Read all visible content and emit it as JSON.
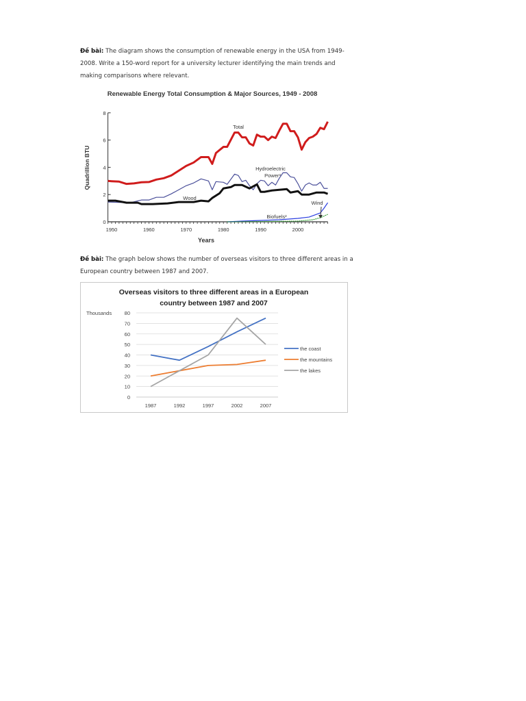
{
  "prompt1": {
    "label": "Đề bài:",
    "text": " The diagram shows the consumption of renewable energy in the USA from 1949-2008. Write a 150-word report for a university lecturer identifying the main trends and making comparisons where relevant."
  },
  "prompt2": {
    "label": "Đề bài:",
    "text": " The graph below shows the number of overseas visitors to three different areas in a European country between 1987 and 2007."
  },
  "chart_data": [
    {
      "type": "line",
      "title": "Renewable Energy Total Consumption & Major Sources, 1949 - 2008",
      "xlabel": "Years",
      "ylabel": "Quadrillion BTU",
      "xlim": [
        1949,
        2008
      ],
      "ylim": [
        0,
        8
      ],
      "xticks": [
        "1950",
        "1960",
        "1970",
        "1980",
        "1990",
        "2000"
      ],
      "yticks": [
        "0",
        "2",
        "4",
        "6",
        "8"
      ],
      "grid": false,
      "legend": "inline labels",
      "series": [
        {
          "name": "Total",
          "label": "Total",
          "color": "#d01c1c",
          "x": [
            1949,
            1950,
            1952,
            1954,
            1956,
            1958,
            1960,
            1962,
            1964,
            1966,
            1968,
            1970,
            1972,
            1974,
            1976,
            1977,
            1978,
            1980,
            1981,
            1983,
            1984,
            1985,
            1986,
            1987,
            1988,
            1989,
            1990,
            1991,
            1992,
            1993,
            1994,
            1995,
            1996,
            1997,
            1998,
            1999,
            2000,
            2001,
            2002,
            2003,
            2004,
            2005,
            2006,
            2007,
            2008
          ],
          "y": [
            3.0,
            2.98,
            2.95,
            2.78,
            2.82,
            2.9,
            2.92,
            3.1,
            3.2,
            3.4,
            3.75,
            4.1,
            4.35,
            4.75,
            4.75,
            4.25,
            5.05,
            5.5,
            5.5,
            6.55,
            6.55,
            6.2,
            6.2,
            5.75,
            5.6,
            6.4,
            6.25,
            6.25,
            6.0,
            6.25,
            6.15,
            6.7,
            7.2,
            7.2,
            6.65,
            6.65,
            6.2,
            5.3,
            5.85,
            6.15,
            6.25,
            6.45,
            6.9,
            6.8,
            7.35
          ]
        },
        {
          "name": "Hydroelectric Power",
          "label": "Hydroelectric",
          "label2": "Power³",
          "color": "#4a4f9a",
          "x": [
            1949,
            1955,
            1958,
            1960,
            1962,
            1964,
            1966,
            1968,
            1970,
            1972,
            1974,
            1976,
            1977,
            1978,
            1980,
            1981,
            1983,
            1984,
            1985,
            1986,
            1987,
            1988,
            1989,
            1990,
            1991,
            1992,
            1993,
            1994,
            1995,
            1996,
            1997,
            1998,
            1999,
            2000,
            2001,
            2002,
            2003,
            2004,
            2005,
            2006,
            2007,
            2008
          ],
          "y": [
            1.45,
            1.4,
            1.6,
            1.6,
            1.8,
            1.8,
            2.05,
            2.35,
            2.65,
            2.85,
            3.15,
            3.0,
            2.35,
            2.95,
            2.9,
            2.75,
            3.5,
            3.4,
            2.95,
            3.05,
            2.65,
            2.35,
            2.8,
            3.05,
            3.0,
            2.65,
            2.9,
            2.7,
            3.2,
            3.6,
            3.6,
            3.3,
            3.25,
            2.8,
            2.25,
            2.7,
            2.85,
            2.7,
            2.7,
            2.9,
            2.45,
            2.45
          ]
        },
        {
          "name": "Wood",
          "label": "Wood",
          "color": "#111111",
          "x": [
            1949,
            1951,
            1954,
            1957,
            1958,
            1961,
            1965,
            1968,
            1972,
            1974,
            1976,
            1977,
            1979,
            1980,
            1982,
            1983,
            1985,
            1987,
            1989,
            1990,
            1991,
            1993,
            1995,
            1997,
            1998,
            2000,
            2001,
            2003,
            2005,
            2007,
            2008
          ],
          "y": [
            1.55,
            1.55,
            1.4,
            1.4,
            1.3,
            1.3,
            1.35,
            1.45,
            1.45,
            1.55,
            1.5,
            1.75,
            2.1,
            2.45,
            2.55,
            2.7,
            2.7,
            2.45,
            2.75,
            2.2,
            2.2,
            2.3,
            2.35,
            2.4,
            2.15,
            2.25,
            2.0,
            2.0,
            2.15,
            2.15,
            2.05
          ]
        },
        {
          "name": "Wind",
          "label": "Wind",
          "color": "#2a3ee0",
          "x": [
            1981,
            1985,
            1990,
            1995,
            2000,
            2003,
            2005,
            2006,
            2007,
            2008
          ],
          "y": [
            0.0,
            0.05,
            0.1,
            0.15,
            0.25,
            0.35,
            0.55,
            0.65,
            1.0,
            1.4
          ]
        },
        {
          "name": "Biofuels",
          "label": "Biofuels²",
          "color": "#2e9a2e",
          "x": [
            1981,
            1990,
            2000,
            2002,
            2004,
            2006,
            2007,
            2008
          ],
          "y": [
            0.0,
            0.02,
            0.05,
            0.1,
            0.15,
            0.3,
            0.42,
            0.55
          ]
        }
      ]
    },
    {
      "type": "line",
      "title_line1": "Overseas visitors to three different areas in a European",
      "title_line2": "country between 1987 and 2007",
      "ylabel": "Thousands",
      "categories": [
        "1987",
        "1992",
        "1997",
        "2002",
        "2007"
      ],
      "yticks": [
        "0",
        "10",
        "20",
        "30",
        "40",
        "50",
        "60",
        "70",
        "80"
      ],
      "ylim": [
        0,
        80
      ],
      "grid": true,
      "legend": "right",
      "series": [
        {
          "name": "the coast",
          "color": "#4472c4",
          "values": [
            40,
            35,
            48,
            62,
            75
          ]
        },
        {
          "name": "the mountains",
          "color": "#ed7d31",
          "values": [
            20,
            25,
            30,
            31,
            35
          ]
        },
        {
          "name": "the lakes",
          "color": "#a5a5a5",
          "values": [
            10,
            25,
            40,
            75,
            50
          ]
        }
      ]
    }
  ]
}
